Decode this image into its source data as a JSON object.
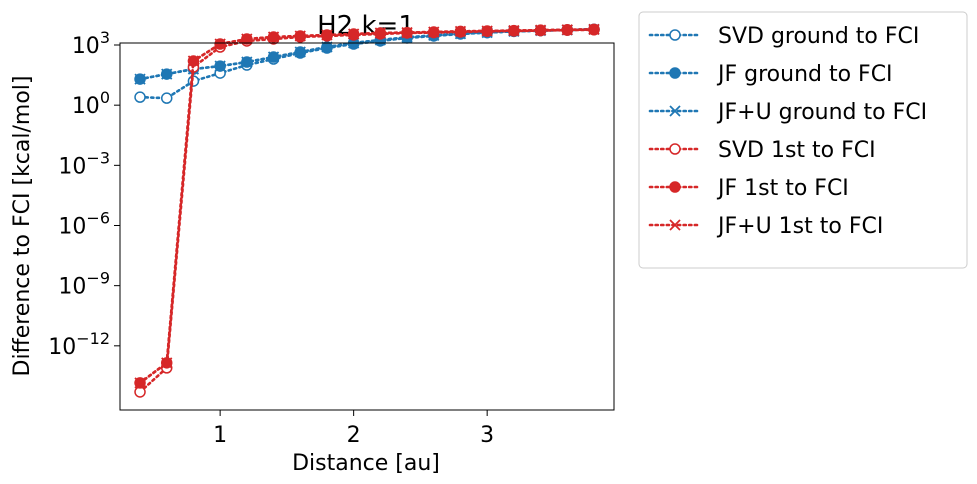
{
  "chart_data": {
    "type": "line",
    "title": "H2 k=1",
    "xlabel": "Distance [au]",
    "ylabel": "Difference to FCI [kcal/mol]",
    "y_scale": "log",
    "xlim": [
      0.25,
      3.95
    ],
    "ylim_exp": [
      -15.2,
      3.1
    ],
    "x_ticks": [
      1,
      2,
      3
    ],
    "x_tick_labels": [
      "1",
      "2",
      "3"
    ],
    "y_ticks_exp": [
      0,
      -3,
      -6,
      -9,
      -12,
      3
    ],
    "y_tick_base": "10",
    "y_tick_exponents": [
      "0",
      "−3",
      "−6",
      "−9",
      "−12",
      "3"
    ],
    "grid": false,
    "legend_position": "outside-right",
    "x": [
      0.4,
      0.6,
      0.8,
      1.0,
      1.2,
      1.4,
      1.6,
      1.8,
      2.0,
      2.2,
      2.4,
      2.6,
      2.8,
      3.0,
      3.2,
      3.4,
      3.6,
      3.8
    ],
    "series": [
      {
        "name": "SVD ground to FCI",
        "color": "#1f77b4",
        "marker": "circle-open",
        "y_log10": [
          0.4,
          0.35,
          1.2,
          1.6,
          2.0,
          2.3,
          2.6,
          2.85,
          3.05,
          3.2,
          3.35,
          3.45,
          3.55,
          3.62,
          3.68,
          3.72,
          3.75,
          3.78
        ],
        "y_display": [
          "2.5",
          "2.2",
          "16",
          "40",
          "100",
          "200",
          "400",
          "710",
          "1120",
          "1580",
          "2240",
          "2820",
          "3550",
          "4170",
          "4790",
          "5250",
          "5620",
          "6030"
        ]
      },
      {
        "name": "JF ground to FCI",
        "color": "#1f77b4",
        "marker": "circle-filled",
        "y_log10": [
          1.3,
          1.55,
          1.8,
          1.95,
          2.15,
          2.4,
          2.65,
          2.9,
          3.1,
          3.25,
          3.38,
          3.48,
          3.56,
          3.62,
          3.68,
          3.72,
          3.75,
          3.78
        ],
        "y_display": [
          "20",
          "35",
          "63",
          "89",
          "141",
          "251",
          "447",
          "794",
          "1259",
          "1778",
          "2399",
          "3020",
          "3631",
          "4169",
          "4786",
          "5248",
          "5623",
          "6026"
        ]
      },
      {
        "name": "JF+U ground to FCI",
        "color": "#1f77b4",
        "marker": "x",
        "y_log10": [
          1.3,
          1.55,
          1.8,
          1.95,
          2.15,
          2.4,
          2.65,
          2.9,
          3.1,
          3.25,
          3.38,
          3.48,
          3.56,
          3.62,
          3.68,
          3.72,
          3.75,
          3.78
        ],
        "y_display": [
          "20",
          "35",
          "63",
          "89",
          "141",
          "251",
          "447",
          "794",
          "1259",
          "1778",
          "2399",
          "3020",
          "3631",
          "4169",
          "4786",
          "5248",
          "5623",
          "6026"
        ]
      },
      {
        "name": "SVD 1st to FCI",
        "color": "#d62728",
        "marker": "circle-open",
        "y_log10": [
          -14.3,
          -13.1,
          1.9,
          2.9,
          3.2,
          3.3,
          3.4,
          3.45,
          3.5,
          3.55,
          3.6,
          3.62,
          3.65,
          3.68,
          3.7,
          3.72,
          3.74,
          3.76
        ],
        "y_display": [
          "5e-15",
          "8e-14",
          "79",
          "794",
          "1585",
          "1995",
          "2512",
          "2818",
          "3162",
          "3548",
          "3981",
          "4169",
          "4467",
          "4786",
          "5012",
          "5248",
          "5495",
          "5754"
        ]
      },
      {
        "name": "JF 1st to FCI",
        "color": "#d62728",
        "marker": "circle-filled",
        "y_log10": [
          -13.85,
          -12.85,
          2.2,
          3.05,
          3.3,
          3.4,
          3.45,
          3.5,
          3.55,
          3.6,
          3.62,
          3.65,
          3.68,
          3.7,
          3.72,
          3.74,
          3.76,
          3.78
        ],
        "y_display": [
          "1.4e-14",
          "1.4e-13",
          "158",
          "1122",
          "1995",
          "2512",
          "2818",
          "3162",
          "3548",
          "3981",
          "4169",
          "4467",
          "4786",
          "5012",
          "5248",
          "5495",
          "5754",
          "6026"
        ]
      },
      {
        "name": "JF+U 1st to FCI",
        "color": "#d62728",
        "marker": "x",
        "y_log10": [
          -13.85,
          -12.85,
          2.2,
          3.05,
          3.3,
          3.4,
          3.45,
          3.5,
          3.55,
          3.6,
          3.62,
          3.65,
          3.68,
          3.7,
          3.72,
          3.74,
          3.76,
          3.78
        ],
        "y_display": [
          "1.4e-14",
          "1.4e-13",
          "158",
          "1122",
          "1995",
          "2512",
          "2818",
          "3162",
          "3548",
          "3981",
          "4169",
          "4467",
          "4786",
          "5012",
          "5248",
          "5495",
          "5754",
          "6026"
        ]
      }
    ]
  }
}
